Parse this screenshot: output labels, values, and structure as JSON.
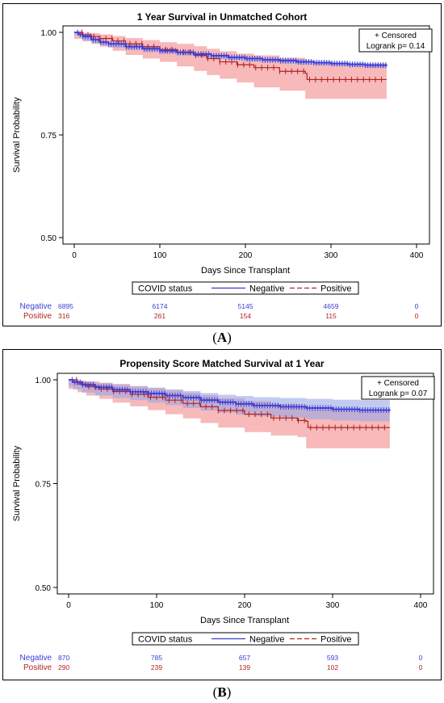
{
  "chart_data": [
    {
      "type": "line",
      "title": "1 Year Survival in Unmatched Cohort",
      "xlabel": "Days Since Transplant",
      "ylabel": "Survival Probability",
      "xlim": [
        0,
        400
      ],
      "ylim": [
        0.5,
        1.0
      ],
      "x_ticks": [
        "0",
        "100",
        "200",
        "300",
        "400"
      ],
      "y_ticks": [
        "0.50",
        "0.75",
        "1.00"
      ],
      "legend_title": "COVID status",
      "legend_entries": [
        "Negative",
        "Positive"
      ],
      "inset_censored": "+ Censored",
      "inset_pvalue": "Logrank p=  0.14",
      "panel_label": "A",
      "series": [
        {
          "name": "Negative",
          "color": "#3b3bd6",
          "band_color": "#9aa6e6",
          "x": [
            0,
            5,
            10,
            20,
            30,
            40,
            60,
            80,
            100,
            120,
            140,
            160,
            180,
            200,
            220,
            240,
            260,
            280,
            300,
            320,
            340,
            365
          ],
          "y": [
            1.0,
            0.995,
            0.99,
            0.982,
            0.976,
            0.972,
            0.965,
            0.96,
            0.955,
            0.951,
            0.947,
            0.943,
            0.939,
            0.936,
            0.933,
            0.931,
            0.928,
            0.926,
            0.924,
            0.922,
            0.92,
            0.918
          ],
          "ci_lower": [
            1.0,
            0.993,
            0.988,
            0.979,
            0.973,
            0.969,
            0.962,
            0.957,
            0.952,
            0.948,
            0.944,
            0.94,
            0.936,
            0.932,
            0.929,
            0.927,
            0.924,
            0.922,
            0.92,
            0.918,
            0.916,
            0.914
          ],
          "ci_upper": [
            1.0,
            0.997,
            0.993,
            0.985,
            0.979,
            0.975,
            0.968,
            0.963,
            0.958,
            0.954,
            0.95,
            0.946,
            0.942,
            0.94,
            0.937,
            0.935,
            0.932,
            0.93,
            0.928,
            0.926,
            0.924,
            0.922
          ],
          "at_risk": [
            6895,
            6174,
            5145,
            4659,
            0
          ]
        },
        {
          "name": "Positive",
          "color": "#b22222",
          "band_color": "#f08080",
          "x": [
            0,
            10,
            20,
            30,
            45,
            60,
            80,
            100,
            120,
            140,
            155,
            170,
            190,
            210,
            240,
            270,
            272,
            300,
            330,
            365
          ],
          "y": [
            1.0,
            0.994,
            0.99,
            0.985,
            0.979,
            0.972,
            0.965,
            0.958,
            0.952,
            0.944,
            0.936,
            0.928,
            0.921,
            0.914,
            0.905,
            0.9,
            0.885,
            0.885,
            0.885,
            0.885
          ],
          "ci_lower": [
            1.0,
            0.984,
            0.978,
            0.972,
            0.965,
            0.955,
            0.945,
            0.936,
            0.928,
            0.917,
            0.906,
            0.896,
            0.887,
            0.878,
            0.866,
            0.858,
            0.838,
            0.838,
            0.838,
            0.838
          ],
          "ci_upper": [
            1.0,
            0.999,
            0.998,
            0.995,
            0.991,
            0.986,
            0.981,
            0.976,
            0.972,
            0.966,
            0.96,
            0.954,
            0.948,
            0.944,
            0.938,
            0.934,
            0.924,
            0.924,
            0.924,
            0.924
          ],
          "at_risk": [
            316,
            261,
            154,
            115,
            0
          ]
        }
      ],
      "at_risk_times": [
        0,
        100,
        200,
        300,
        400
      ]
    },
    {
      "type": "line",
      "title": "Propensity Score Matched Survival at 1 Year",
      "xlabel": "Days Since Transplant",
      "ylabel": "Survival Probability",
      "xlim": [
        0,
        400
      ],
      "ylim": [
        0.5,
        1.0
      ],
      "x_ticks": [
        "0",
        "100",
        "200",
        "300",
        "400"
      ],
      "y_ticks": [
        "0.50",
        "0.75",
        "1.00"
      ],
      "legend_title": "COVID status",
      "legend_entries": [
        "Negative",
        "Positive"
      ],
      "inset_censored": "+ Censored",
      "inset_pvalue": "Logrank p=  0.07",
      "panel_label": "B",
      "series": [
        {
          "name": "Negative",
          "color": "#3b3bd6",
          "band_color": "#9aa6e6",
          "x": [
            0,
            5,
            15,
            30,
            50,
            70,
            90,
            110,
            130,
            150,
            170,
            190,
            210,
            240,
            270,
            300,
            330,
            365
          ],
          "y": [
            1.0,
            0.994,
            0.988,
            0.982,
            0.976,
            0.971,
            0.967,
            0.962,
            0.957,
            0.951,
            0.946,
            0.942,
            0.938,
            0.935,
            0.932,
            0.929,
            0.927,
            0.925
          ],
          "ci_lower": [
            1.0,
            0.985,
            0.977,
            0.969,
            0.962,
            0.956,
            0.951,
            0.945,
            0.939,
            0.932,
            0.926,
            0.921,
            0.916,
            0.912,
            0.908,
            0.905,
            0.902,
            0.9
          ],
          "ci_upper": [
            1.0,
            0.999,
            0.996,
            0.992,
            0.988,
            0.984,
            0.981,
            0.977,
            0.973,
            0.968,
            0.964,
            0.961,
            0.958,
            0.956,
            0.954,
            0.952,
            0.951,
            0.949
          ],
          "at_risk": [
            870,
            785,
            657,
            593,
            0
          ]
        },
        {
          "name": "Positive",
          "color": "#b22222",
          "band_color": "#f08080",
          "x": [
            0,
            10,
            20,
            35,
            50,
            70,
            90,
            110,
            130,
            150,
            170,
            200,
            230,
            260,
            270,
            272,
            300,
            330,
            365
          ],
          "y": [
            1.0,
            0.99,
            0.984,
            0.978,
            0.972,
            0.965,
            0.958,
            0.951,
            0.943,
            0.935,
            0.926,
            0.917,
            0.908,
            0.902,
            0.9,
            0.885,
            0.885,
            0.885,
            0.885
          ],
          "ci_lower": [
            1.0,
            0.978,
            0.97,
            0.962,
            0.954,
            0.945,
            0.936,
            0.927,
            0.917,
            0.907,
            0.896,
            0.885,
            0.874,
            0.866,
            0.862,
            0.835,
            0.835,
            0.835,
            0.835
          ],
          "ci_upper": [
            1.0,
            0.998,
            0.996,
            0.993,
            0.99,
            0.985,
            0.98,
            0.975,
            0.969,
            0.963,
            0.956,
            0.949,
            0.942,
            0.938,
            0.937,
            0.928,
            0.928,
            0.928,
            0.928
          ],
          "at_risk": [
            290,
            239,
            139,
            102,
            0
          ]
        }
      ],
      "at_risk_times": [
        0,
        100,
        200,
        300,
        400
      ]
    }
  ]
}
